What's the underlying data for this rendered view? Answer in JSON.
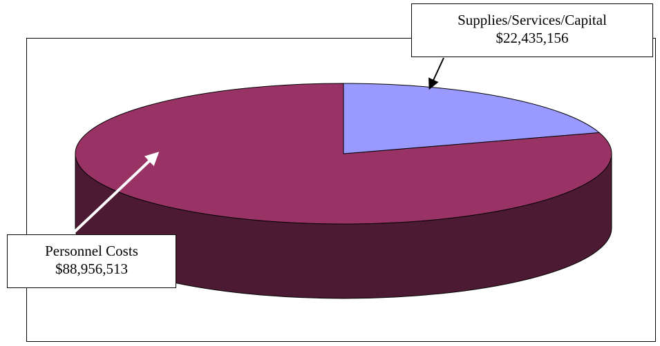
{
  "chart_data": {
    "type": "pie",
    "style": "3d",
    "title": "",
    "slices": [
      {
        "label": "Personnel Costs",
        "value": 88956513,
        "value_label": "$88,956,513",
        "color": "#993366"
      },
      {
        "label": "Supplies/Services/Capital",
        "value": 22435156,
        "value_label": "$22,435,156",
        "color": "#9999ff"
      }
    ],
    "side_color": "#4d1a33",
    "legend": "none",
    "labels": "callouts-with-arrows"
  }
}
